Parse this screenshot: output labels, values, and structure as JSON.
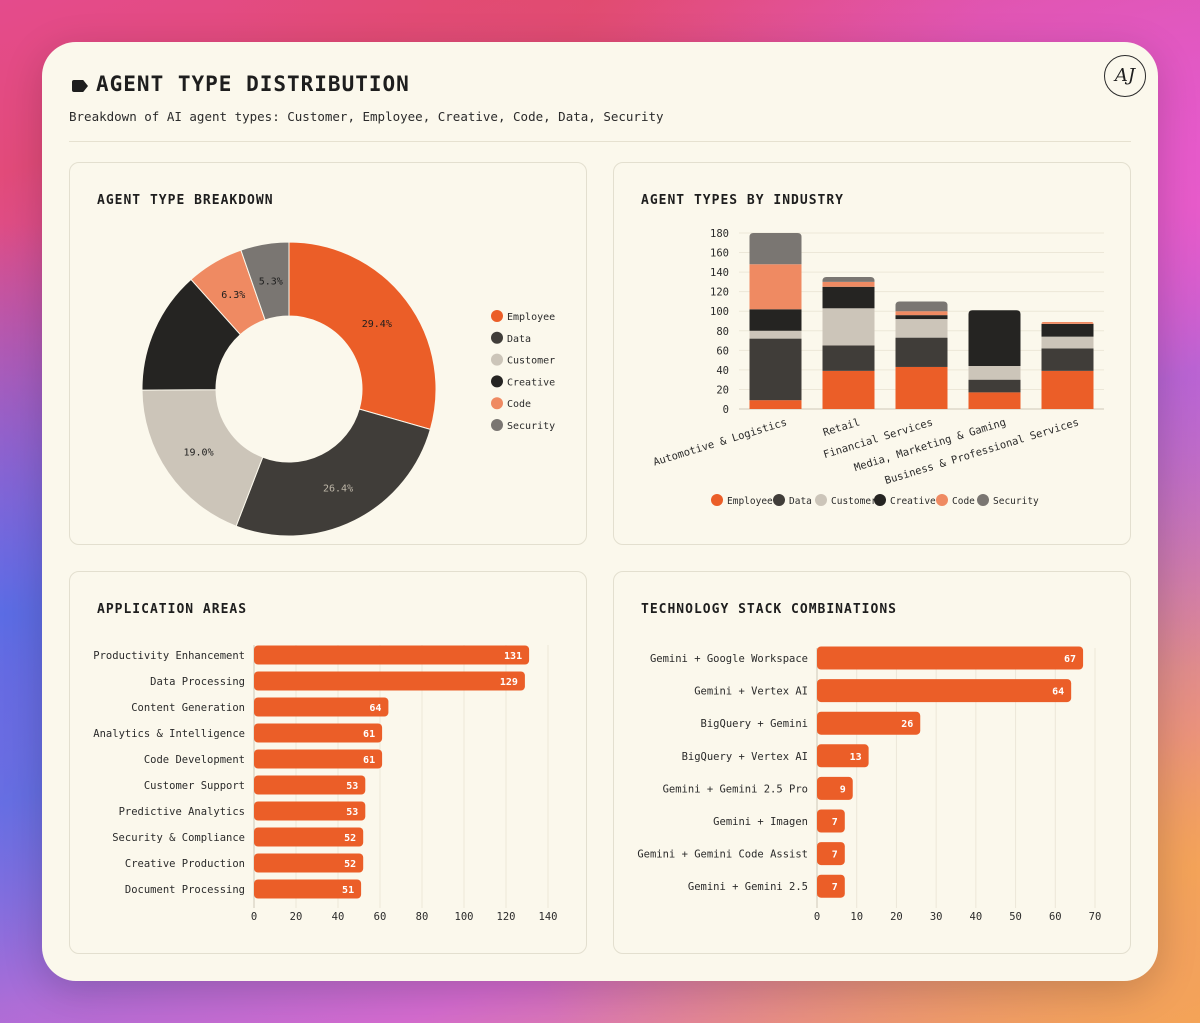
{
  "header": {
    "title": "AGENT TYPE DISTRIBUTION",
    "subtitle": "Breakdown of AI agent types: Customer, Employee, Creative, Code, Data, Security",
    "logo_text": "AJ"
  },
  "colors": {
    "Employee": "#eb5e28",
    "Data": "#403d39",
    "Customer": "#ccc5b9",
    "Creative": "#252422",
    "Code": "#ef8a62",
    "Security": "#7a7672"
  },
  "panels": {
    "donut_title": "AGENT TYPE BREAKDOWN",
    "stacked_title": "AGENT TYPES BY INDUSTRY",
    "apps_title": "APPLICATION AREAS",
    "tech_title": "TECHNOLOGY STACK COMBINATIONS"
  },
  "chart_data": [
    {
      "id": "donut",
      "type": "pie",
      "title": "AGENT TYPE BREAKDOWN",
      "labels": [
        "Employee",
        "Data",
        "Customer",
        "Creative",
        "Code",
        "Security"
      ],
      "values": [
        29.4,
        26.4,
        19.0,
        13.5,
        6.3,
        5.3
      ],
      "value_labels": [
        "29.4%",
        "26.4%",
        "19.0%",
        "",
        "6.3%",
        "5.3%"
      ],
      "legend": [
        "Employee",
        "Data",
        "Customer",
        "Creative",
        "Code",
        "Security"
      ]
    },
    {
      "id": "stacked",
      "type": "bar",
      "title": "AGENT TYPES BY INDUSTRY",
      "categories": [
        "Automotive & Logistics",
        "Retail",
        "Financial Services",
        "Media, Marketing & Gaming",
        "Business & Professional Services"
      ],
      "series": [
        {
          "name": "Employee",
          "values": [
            9,
            39,
            43,
            17,
            39
          ]
        },
        {
          "name": "Data",
          "values": [
            63,
            26,
            30,
            13,
            23
          ]
        },
        {
          "name": "Customer",
          "values": [
            8,
            38,
            19,
            14,
            12
          ]
        },
        {
          "name": "Creative",
          "values": [
            22,
            22,
            4,
            57,
            13
          ]
        },
        {
          "name": "Code",
          "values": [
            46,
            5,
            4,
            0,
            2
          ]
        },
        {
          "name": "Security",
          "values": [
            32,
            5,
            10,
            0,
            0
          ]
        }
      ],
      "ylim": [
        0,
        180
      ],
      "yticks": [
        "0",
        "20",
        "40",
        "60",
        "80",
        "100",
        "120",
        "140",
        "160",
        "180"
      ],
      "legend": [
        "Employee",
        "Data",
        "Customer",
        "Creative",
        "Code",
        "Security"
      ]
    },
    {
      "id": "apps",
      "type": "bar",
      "orientation": "horizontal",
      "title": "APPLICATION AREAS",
      "categories": [
        "Productivity Enhancement",
        "Data Processing",
        "Content Generation",
        "Analytics & Intelligence",
        "Code Development",
        "Customer Support",
        "Predictive Analytics",
        "Security & Compliance",
        "Creative Production",
        "Document Processing"
      ],
      "values": [
        131,
        129,
        64,
        61,
        61,
        53,
        53,
        52,
        52,
        51
      ],
      "xlim": [
        0,
        140
      ],
      "xticks": [
        "0",
        "20",
        "40",
        "60",
        "80",
        "100",
        "120",
        "140"
      ]
    },
    {
      "id": "tech",
      "type": "bar",
      "orientation": "horizontal",
      "title": "TECHNOLOGY STACK COMBINATIONS",
      "categories": [
        "Gemini + Google Workspace",
        "Gemini + Vertex AI",
        "BigQuery + Gemini",
        "BigQuery + Vertex AI",
        "Gemini + Gemini 2.5 Pro",
        "Gemini + Imagen",
        "Gemini + Gemini Code Assist",
        "Gemini + Gemini 2.5"
      ],
      "values": [
        67,
        64,
        26,
        13,
        9,
        7,
        7,
        7
      ],
      "xlim": [
        0,
        70
      ],
      "xticks": [
        "0",
        "10",
        "20",
        "30",
        "40",
        "50",
        "60",
        "70"
      ]
    }
  ]
}
